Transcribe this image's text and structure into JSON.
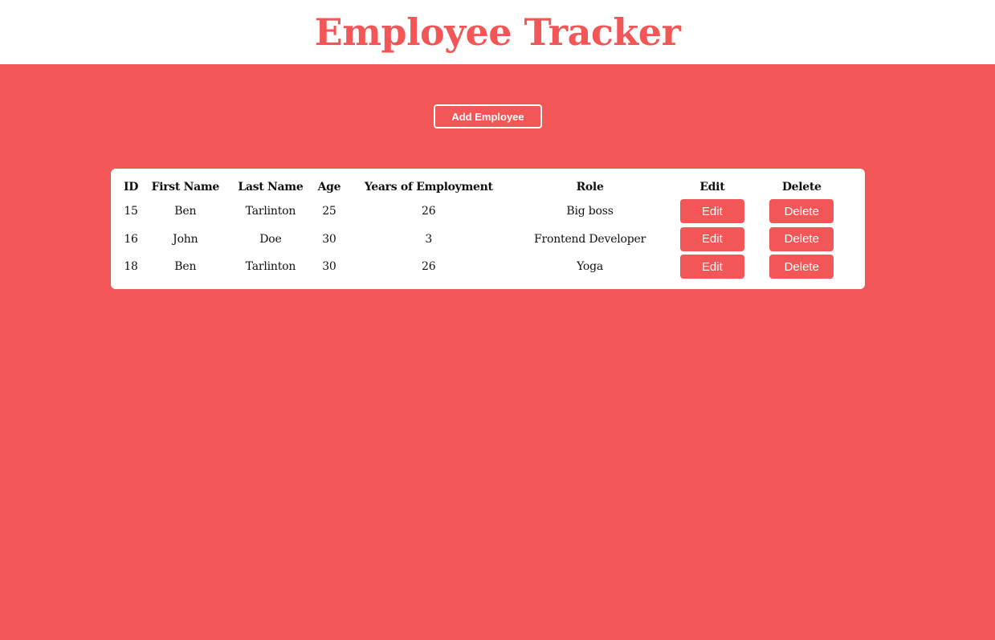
{
  "header": {
    "title": "Employee Tracker"
  },
  "actions": {
    "add_label": "Add Employee"
  },
  "table": {
    "columns": [
      "ID",
      "First Name",
      "Last Name",
      "Age",
      "Years of Employment",
      "Role",
      "Edit",
      "Delete"
    ],
    "rows": [
      {
        "id": "15",
        "first": "Ben",
        "last": "Tarlinton",
        "age": "25",
        "years": "26",
        "role": "Big boss",
        "edit": "Edit",
        "delete": "Delete"
      },
      {
        "id": "16",
        "first": "John",
        "last": "Doe",
        "age": "30",
        "years": "3",
        "role": "Frontend Developer",
        "edit": "Edit",
        "delete": "Delete"
      },
      {
        "id": "18",
        "first": "Ben",
        "last": "Tarlinton",
        "age": "30",
        "years": "26",
        "role": "Yoga",
        "edit": "Edit",
        "delete": "Delete"
      }
    ]
  },
  "colors": {
    "accent": "#f25656",
    "surface": "#ffffff",
    "text": "#111111"
  }
}
